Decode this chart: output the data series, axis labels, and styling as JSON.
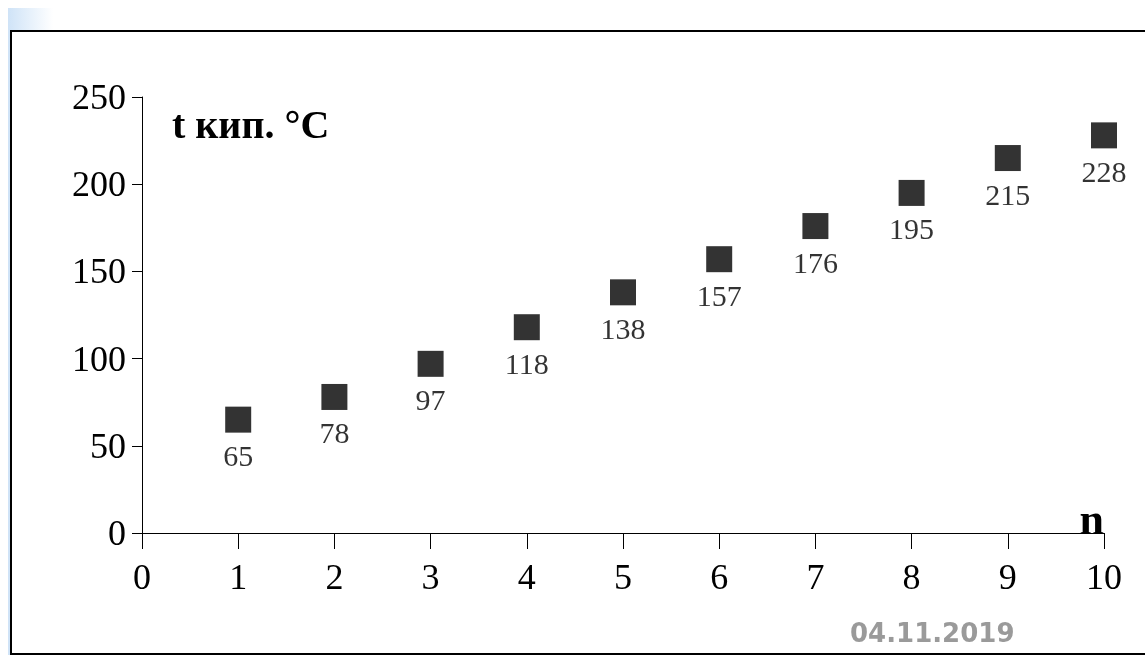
{
  "chart_data": {
    "type": "scatter",
    "xlabel": "n",
    "ylabel": "t кип. °C",
    "x": [
      1,
      2,
      3,
      4,
      5,
      6,
      7,
      8,
      9,
      10
    ],
    "values": [
      65,
      78,
      97,
      118,
      138,
      157,
      176,
      195,
      215,
      228
    ],
    "color": "#000000",
    "marker": "square",
    "data_labels": true,
    "grid": false,
    "xlim": [
      0,
      10
    ],
    "xticks": [
      0,
      1,
      2,
      3,
      4,
      5,
      6,
      7,
      8,
      9,
      10
    ],
    "ylim": [
      0,
      250
    ],
    "yticks": [
      0,
      50,
      100,
      150,
      200,
      250
    ],
    "annotations": [
      "04.11.2019"
    ]
  }
}
